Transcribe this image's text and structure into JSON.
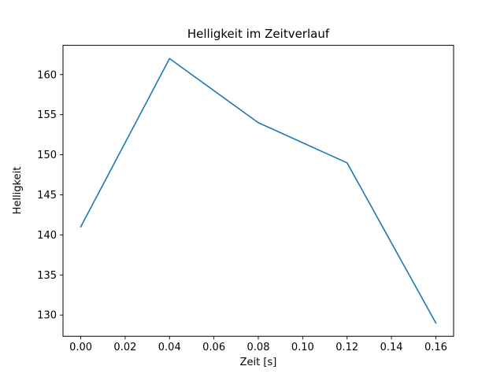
{
  "figure": {
    "background": "#ffffff",
    "frame_color": "#000000"
  },
  "chart_data": {
    "type": "line",
    "title": "Helligkeit im Zeitverlauf",
    "xlabel": "Zeit [s]",
    "ylabel": "Helligkeit",
    "x": [
      0.0,
      0.04,
      0.08,
      0.12,
      0.16
    ],
    "y": [
      141,
      162,
      154,
      149,
      129
    ],
    "xticks": [
      0.0,
      0.02,
      0.04,
      0.06,
      0.08,
      0.1,
      0.12,
      0.14,
      0.16
    ],
    "xtick_labels": [
      "0.00",
      "0.02",
      "0.04",
      "0.06",
      "0.08",
      "0.10",
      "0.12",
      "0.14",
      "0.16"
    ],
    "yticks": [
      130,
      135,
      140,
      145,
      150,
      155,
      160
    ],
    "ytick_labels": [
      "130",
      "135",
      "140",
      "145",
      "150",
      "155",
      "160"
    ],
    "xlim": [
      -0.008,
      0.168
    ],
    "ylim": [
      127.35,
      163.65
    ],
    "line_color": "#1f77b4",
    "grid": false,
    "legend": "none"
  }
}
